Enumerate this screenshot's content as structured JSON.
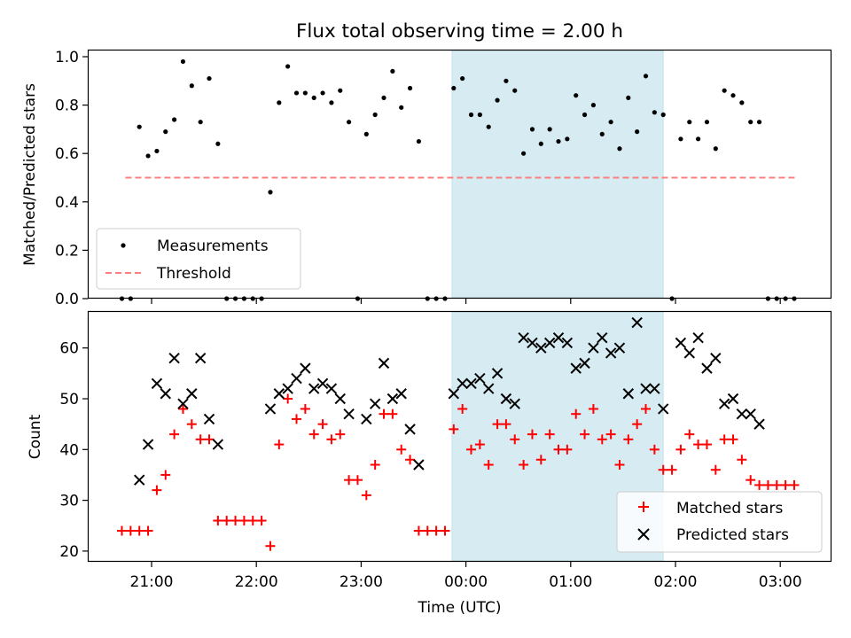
{
  "title": "Flux total observing time = 2.00 h",
  "x_tick_labels": [
    "21:00",
    "22:00",
    "23:00",
    "00:00",
    "01:00",
    "02:00",
    "03:00"
  ],
  "chart_data": [
    {
      "type": "scatter",
      "ylabel": "Matched/Predicted stars",
      "ylim": [
        0,
        1.0
      ],
      "y_ticks": [
        "0.0",
        "0.2",
        "0.4",
        "0.6",
        "0.8",
        "1.0"
      ],
      "legend_position": "lower-left",
      "legend": {
        "measurements": "Measurements",
        "threshold": "Threshold"
      },
      "threshold": {
        "value": 0.5,
        "x_start": "20:45",
        "x_end": "03:10",
        "color": "#ff7f7f"
      },
      "highlight_span": {
        "start": "23:52",
        "end": "01:53",
        "color": "#add8e6"
      },
      "series": [
        {
          "name": "Measurements",
          "color": "#000000",
          "points": [
            [
              "20:43",
              0.0
            ],
            [
              "20:48",
              0.0
            ],
            [
              "20:53",
              0.71
            ],
            [
              "20:58",
              0.59
            ],
            [
              "21:03",
              0.61
            ],
            [
              "21:08",
              0.69
            ],
            [
              "21:13",
              0.74
            ],
            [
              "21:18",
              0.98
            ],
            [
              "21:23",
              0.88
            ],
            [
              "21:28",
              0.73
            ],
            [
              "21:33",
              0.91
            ],
            [
              "21:38",
              0.64
            ],
            [
              "21:43",
              0.0
            ],
            [
              "21:48",
              0.0
            ],
            [
              "21:53",
              0.0
            ],
            [
              "21:58",
              0.0
            ],
            [
              "22:03",
              0.0
            ],
            [
              "22:08",
              0.44
            ],
            [
              "22:13",
              0.81
            ],
            [
              "22:18",
              0.96
            ],
            [
              "22:23",
              0.85
            ],
            [
              "22:28",
              0.85
            ],
            [
              "22:33",
              0.83
            ],
            [
              "22:38",
              0.85
            ],
            [
              "22:43",
              0.81
            ],
            [
              "22:48",
              0.86
            ],
            [
              "22:53",
              0.73
            ],
            [
              "22:58",
              0.0
            ],
            [
              "23:03",
              0.68
            ],
            [
              "23:08",
              0.76
            ],
            [
              "23:13",
              0.83
            ],
            [
              "23:18",
              0.94
            ],
            [
              "23:23",
              0.79
            ],
            [
              "23:28",
              0.87
            ],
            [
              "23:33",
              0.65
            ],
            [
              "23:38",
              0.0
            ],
            [
              "23:43",
              0.0
            ],
            [
              "23:48",
              0.0
            ],
            [
              "23:53",
              0.87
            ],
            [
              "23:58",
              0.91
            ],
            [
              "00:03",
              0.76
            ],
            [
              "00:08",
              0.76
            ],
            [
              "00:13",
              0.71
            ],
            [
              "00:18",
              0.82
            ],
            [
              "00:23",
              0.9
            ],
            [
              "00:28",
              0.86
            ],
            [
              "00:33",
              0.6
            ],
            [
              "00:38",
              0.7
            ],
            [
              "00:43",
              0.64
            ],
            [
              "00:48",
              0.7
            ],
            [
              "00:53",
              0.65
            ],
            [
              "00:58",
              0.66
            ],
            [
              "01:03",
              0.84
            ],
            [
              "01:08",
              0.76
            ],
            [
              "01:13",
              0.8
            ],
            [
              "01:18",
              0.68
            ],
            [
              "01:23",
              0.73
            ],
            [
              "01:28",
              0.62
            ],
            [
              "01:33",
              0.83
            ],
            [
              "01:38",
              0.69
            ],
            [
              "01:43",
              0.92
            ],
            [
              "01:48",
              0.77
            ],
            [
              "01:53",
              0.76
            ],
            [
              "01:58",
              0.0
            ],
            [
              "02:03",
              0.66
            ],
            [
              "02:08",
              0.73
            ],
            [
              "02:13",
              0.66
            ],
            [
              "02:18",
              0.73
            ],
            [
              "02:23",
              0.62
            ],
            [
              "02:28",
              0.86
            ],
            [
              "02:33",
              0.84
            ],
            [
              "02:38",
              0.81
            ],
            [
              "02:43",
              0.73
            ],
            [
              "02:48",
              0.73
            ],
            [
              "02:53",
              0.0
            ],
            [
              "02:58",
              0.0
            ],
            [
              "03:03",
              0.0
            ],
            [
              "03:08",
              0.0
            ]
          ]
        }
      ]
    },
    {
      "type": "scatter",
      "ylabel": "Count",
      "xlabel": "Time (UTC)",
      "ylim": [
        19.2,
        67.1
      ],
      "y_ticks": [
        "20",
        "30",
        "40",
        "50",
        "60"
      ],
      "legend_position": "lower-right",
      "highlight_span": {
        "start": "23:52",
        "end": "01:53",
        "color": "#add8e6"
      },
      "series": [
        {
          "name": "Matched stars",
          "marker": "plus",
          "color": "#ff0000",
          "points": [
            [
              "20:43",
              24
            ],
            [
              "20:48",
              24
            ],
            [
              "20:53",
              24
            ],
            [
              "20:58",
              24
            ],
            [
              "21:03",
              32
            ],
            [
              "21:08",
              35
            ],
            [
              "21:13",
              43
            ],
            [
              "21:18",
              48
            ],
            [
              "21:23",
              45
            ],
            [
              "21:28",
              42
            ],
            [
              "21:33",
              42
            ],
            [
              "21:38",
              26
            ],
            [
              "21:43",
              26
            ],
            [
              "21:48",
              26
            ],
            [
              "21:53",
              26
            ],
            [
              "21:58",
              26
            ],
            [
              "22:03",
              26
            ],
            [
              "22:08",
              21
            ],
            [
              "22:13",
              41
            ],
            [
              "22:18",
              50
            ],
            [
              "22:23",
              46
            ],
            [
              "22:28",
              48
            ],
            [
              "22:33",
              43
            ],
            [
              "22:38",
              45
            ],
            [
              "22:43",
              42
            ],
            [
              "22:48",
              43
            ],
            [
              "22:53",
              34
            ],
            [
              "22:58",
              34
            ],
            [
              "23:03",
              31
            ],
            [
              "23:08",
              37
            ],
            [
              "23:13",
              47
            ],
            [
              "23:18",
              47
            ],
            [
              "23:23",
              40
            ],
            [
              "23:28",
              38
            ],
            [
              "23:33",
              24
            ],
            [
              "23:38",
              24
            ],
            [
              "23:43",
              24
            ],
            [
              "23:48",
              24
            ],
            [
              "23:53",
              44
            ],
            [
              "23:58",
              48
            ],
            [
              "00:03",
              40
            ],
            [
              "00:08",
              41
            ],
            [
              "00:13",
              37
            ],
            [
              "00:18",
              45
            ],
            [
              "00:23",
              45
            ],
            [
              "00:28",
              42
            ],
            [
              "00:33",
              37
            ],
            [
              "00:38",
              43
            ],
            [
              "00:43",
              38
            ],
            [
              "00:48",
              43
            ],
            [
              "00:53",
              40
            ],
            [
              "00:58",
              40
            ],
            [
              "01:03",
              47
            ],
            [
              "01:08",
              43
            ],
            [
              "01:13",
              48
            ],
            [
              "01:18",
              42
            ],
            [
              "01:23",
              43
            ],
            [
              "01:28",
              37
            ],
            [
              "01:33",
              42
            ],
            [
              "01:38",
              45
            ],
            [
              "01:43",
              48
            ],
            [
              "01:48",
              40
            ],
            [
              "01:53",
              36
            ],
            [
              "01:58",
              36
            ],
            [
              "02:03",
              40
            ],
            [
              "02:08",
              43
            ],
            [
              "02:13",
              41
            ],
            [
              "02:18",
              41
            ],
            [
              "02:23",
              36
            ],
            [
              "02:28",
              42
            ],
            [
              "02:33",
              42
            ],
            [
              "02:38",
              38
            ],
            [
              "02:43",
              34
            ],
            [
              "02:48",
              33
            ],
            [
              "02:53",
              33
            ],
            [
              "02:58",
              33
            ],
            [
              "03:03",
              33
            ],
            [
              "03:08",
              33
            ]
          ]
        },
        {
          "name": "Predicted stars",
          "marker": "x",
          "color": "#000000",
          "points": [
            [
              "20:53",
              34
            ],
            [
              "20:58",
              41
            ],
            [
              "21:03",
              53
            ],
            [
              "21:08",
              51
            ],
            [
              "21:13",
              58
            ],
            [
              "21:18",
              49
            ],
            [
              "21:23",
              51
            ],
            [
              "21:28",
              58
            ],
            [
              "21:33",
              46
            ],
            [
              "21:38",
              41
            ],
            [
              "22:08",
              48
            ],
            [
              "22:13",
              51
            ],
            [
              "22:18",
              52
            ],
            [
              "22:23",
              54
            ],
            [
              "22:28",
              56
            ],
            [
              "22:33",
              52
            ],
            [
              "22:38",
              53
            ],
            [
              "22:43",
              52
            ],
            [
              "22:48",
              50
            ],
            [
              "22:53",
              47
            ],
            [
              "23:03",
              46
            ],
            [
              "23:08",
              49
            ],
            [
              "23:13",
              57
            ],
            [
              "23:18",
              50
            ],
            [
              "23:23",
              51
            ],
            [
              "23:28",
              44
            ],
            [
              "23:33",
              37
            ],
            [
              "23:53",
              51
            ],
            [
              "23:58",
              53
            ],
            [
              "00:03",
              53
            ],
            [
              "00:08",
              54
            ],
            [
              "00:13",
              52
            ],
            [
              "00:18",
              55
            ],
            [
              "00:23",
              50
            ],
            [
              "00:28",
              49
            ],
            [
              "00:33",
              62
            ],
            [
              "00:38",
              61
            ],
            [
              "00:43",
              60
            ],
            [
              "00:48",
              61
            ],
            [
              "00:53",
              62
            ],
            [
              "00:58",
              61
            ],
            [
              "01:03",
              56
            ],
            [
              "01:08",
              57
            ],
            [
              "01:13",
              60
            ],
            [
              "01:18",
              62
            ],
            [
              "01:23",
              59
            ],
            [
              "01:28",
              60
            ],
            [
              "01:33",
              51
            ],
            [
              "01:38",
              65
            ],
            [
              "01:43",
              52
            ],
            [
              "01:48",
              52
            ],
            [
              "01:53",
              48
            ],
            [
              "02:03",
              61
            ],
            [
              "02:08",
              59
            ],
            [
              "02:13",
              62
            ],
            [
              "02:18",
              56
            ],
            [
              "02:23",
              58
            ],
            [
              "02:28",
              49
            ],
            [
              "02:33",
              50
            ],
            [
              "02:38",
              47
            ],
            [
              "02:43",
              47
            ],
            [
              "02:48",
              45
            ]
          ]
        }
      ]
    }
  ]
}
